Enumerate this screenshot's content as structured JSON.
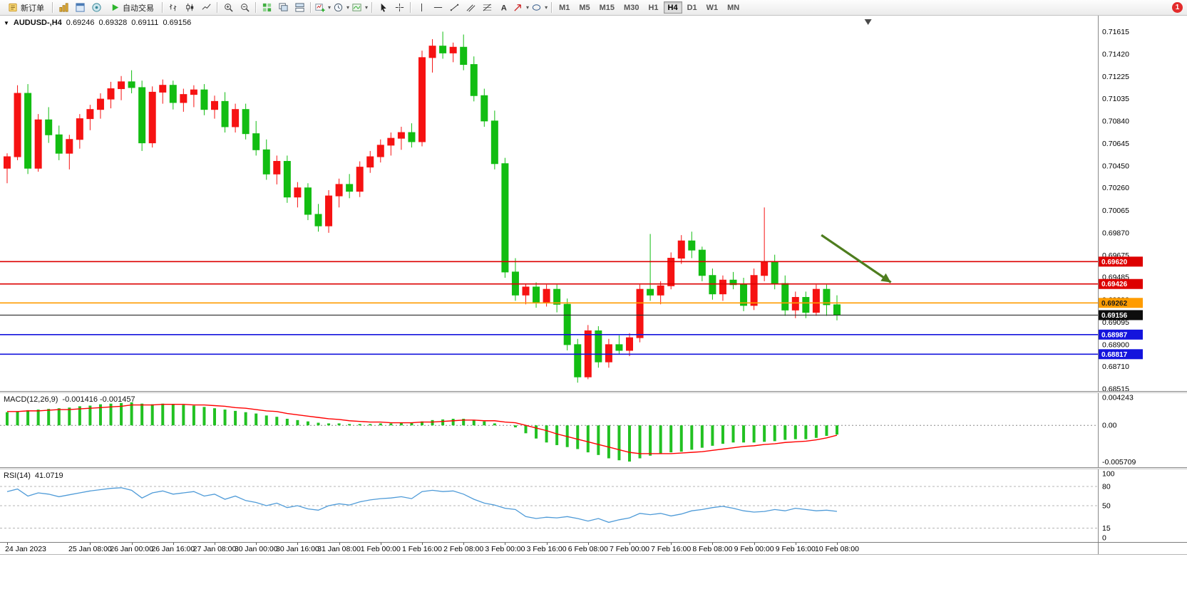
{
  "toolbar": {
    "new_order_label": "新订单",
    "autotrading_label": "自动交易",
    "timeframes": [
      "M1",
      "M5",
      "M15",
      "M30",
      "H1",
      "H4",
      "D1",
      "W1",
      "MN"
    ],
    "active_timeframe": "H4",
    "notification_badge": "1",
    "dropdown_caret": "▾"
  },
  "chart_header": {
    "collapse_icon": "▼",
    "title": "AUDUSD-,H4",
    "open": "0.69246",
    "high": "0.69328",
    "low": "0.69111",
    "close": "0.69156"
  },
  "chart_data": {
    "type": "candlestick",
    "symbol": "AUDUSD-",
    "timeframe": "H4",
    "colors": {
      "up": "#f61212",
      "down": "#12bd12",
      "macd_hist": "#22c122",
      "macd_signal": "#ff0000",
      "rsi_line": "#4f9bd8"
    },
    "ylim": [
      0.6851,
      0.7163
    ],
    "price_axis": [
      "0.71615",
      "0.71420",
      "0.71225",
      "0.71035",
      "0.70840",
      "0.70645",
      "0.70450",
      "0.70260",
      "0.70065",
      "0.69870",
      "0.69675",
      "0.69485",
      "0.69290",
      "0.69095",
      "0.68900",
      "0.68710",
      "0.68515"
    ],
    "candles": [
      [
        0.7043,
        0.7056,
        0.703,
        0.7053
      ],
      [
        0.7053,
        0.7115,
        0.705,
        0.7108
      ],
      [
        0.7108,
        0.7116,
        0.7038,
        0.7043
      ],
      [
        0.7043,
        0.709,
        0.704,
        0.7085
      ],
      [
        0.7085,
        0.7096,
        0.7065,
        0.7072
      ],
      [
        0.7072,
        0.708,
        0.705,
        0.7056
      ],
      [
        0.7056,
        0.7072,
        0.7042,
        0.7068
      ],
      [
        0.7068,
        0.709,
        0.706,
        0.7086
      ],
      [
        0.7086,
        0.7098,
        0.7076,
        0.7094
      ],
      [
        0.7094,
        0.7108,
        0.7086,
        0.7103
      ],
      [
        0.7103,
        0.7118,
        0.7095,
        0.7112
      ],
      [
        0.7112,
        0.7123,
        0.7102,
        0.7118
      ],
      [
        0.7118,
        0.7128,
        0.7108,
        0.7113
      ],
      [
        0.7113,
        0.7119,
        0.7058,
        0.7065
      ],
      [
        0.7065,
        0.7114,
        0.7061,
        0.7109
      ],
      [
        0.7109,
        0.712,
        0.7099,
        0.7115
      ],
      [
        0.7115,
        0.7119,
        0.7094,
        0.71
      ],
      [
        0.71,
        0.7112,
        0.7092,
        0.7107
      ],
      [
        0.7107,
        0.7115,
        0.7096,
        0.7111
      ],
      [
        0.7111,
        0.7116,
        0.7089,
        0.7094
      ],
      [
        0.7094,
        0.7106,
        0.7086,
        0.7101
      ],
      [
        0.7101,
        0.7109,
        0.7074,
        0.7079
      ],
      [
        0.7079,
        0.7099,
        0.7074,
        0.7094
      ],
      [
        0.7094,
        0.7099,
        0.7068,
        0.7073
      ],
      [
        0.7073,
        0.7084,
        0.7054,
        0.7059
      ],
      [
        0.7059,
        0.7068,
        0.7033,
        0.7038
      ],
      [
        0.7038,
        0.7054,
        0.7029,
        0.7049
      ],
      [
        0.7049,
        0.7054,
        0.7013,
        0.7018
      ],
      [
        0.7018,
        0.7031,
        0.7009,
        0.7026
      ],
      [
        0.7026,
        0.703,
        0.6998,
        0.7003
      ],
      [
        0.7003,
        0.7012,
        0.6988,
        0.6993
      ],
      [
        0.6993,
        0.7024,
        0.6987,
        0.7019
      ],
      [
        0.7019,
        0.7034,
        0.7009,
        0.7029
      ],
      [
        0.7029,
        0.7038,
        0.7017,
        0.7023
      ],
      [
        0.7023,
        0.7049,
        0.7018,
        0.7044
      ],
      [
        0.7044,
        0.7058,
        0.7039,
        0.7053
      ],
      [
        0.7053,
        0.7068,
        0.7048,
        0.7063
      ],
      [
        0.7063,
        0.7074,
        0.7054,
        0.7069
      ],
      [
        0.7069,
        0.7079,
        0.7059,
        0.7074
      ],
      [
        0.7074,
        0.7082,
        0.7061,
        0.7066
      ],
      [
        0.7066,
        0.7145,
        0.7062,
        0.7139
      ],
      [
        0.7139,
        0.7155,
        0.7126,
        0.7149
      ],
      [
        0.7149,
        0.71615,
        0.7138,
        0.7143
      ],
      [
        0.7143,
        0.7152,
        0.7135,
        0.7148
      ],
      [
        0.7148,
        0.7159,
        0.7128,
        0.7133
      ],
      [
        0.7133,
        0.714,
        0.7101,
        0.7106
      ],
      [
        0.7106,
        0.7112,
        0.7079,
        0.7084
      ],
      [
        0.7084,
        0.7093,
        0.7042,
        0.7047
      ],
      [
        0.7047,
        0.7052,
        0.6948,
        0.6953
      ],
      [
        0.6953,
        0.6965,
        0.6928,
        0.6933
      ],
      [
        0.6933,
        0.6943,
        0.6925,
        0.694
      ],
      [
        0.694,
        0.6944,
        0.6922,
        0.6927
      ],
      [
        0.6927,
        0.6942,
        0.6923,
        0.6938
      ],
      [
        0.6938,
        0.6942,
        0.6918,
        0.6925
      ],
      [
        0.6925,
        0.693,
        0.6885,
        0.689
      ],
      [
        0.689,
        0.6895,
        0.6857,
        0.6862
      ],
      [
        0.6862,
        0.6907,
        0.686,
        0.6902
      ],
      [
        0.6902,
        0.6906,
        0.687,
        0.6875
      ],
      [
        0.6875,
        0.6895,
        0.687,
        0.689
      ],
      [
        0.689,
        0.6898,
        0.6882,
        0.6885
      ],
      [
        0.6885,
        0.69,
        0.688,
        0.6896
      ],
      [
        0.6896,
        0.6942,
        0.6892,
        0.6938
      ],
      [
        0.6938,
        0.6986,
        0.6928,
        0.6933
      ],
      [
        0.6933,
        0.6945,
        0.6925,
        0.6941
      ],
      [
        0.6941,
        0.697,
        0.6938,
        0.6965
      ],
      [
        0.6965,
        0.6985,
        0.696,
        0.698
      ],
      [
        0.698,
        0.6988,
        0.6965,
        0.6972
      ],
      [
        0.6972,
        0.6975,
        0.6945,
        0.695
      ],
      [
        0.695,
        0.6956,
        0.6929,
        0.6934
      ],
      [
        0.6934,
        0.695,
        0.6928,
        0.6946
      ],
      [
        0.6946,
        0.6953,
        0.6938,
        0.6942
      ],
      [
        0.6942,
        0.6948,
        0.6919,
        0.6924
      ],
      [
        0.6924,
        0.6956,
        0.692,
        0.695
      ],
      [
        0.695,
        0.7009,
        0.6945,
        0.6962
      ],
      [
        0.6962,
        0.6968,
        0.6938,
        0.6943
      ],
      [
        0.6943,
        0.695,
        0.6915,
        0.692
      ],
      [
        0.692,
        0.6936,
        0.6913,
        0.6931
      ],
      [
        0.6931,
        0.6936,
        0.6913,
        0.6918
      ],
      [
        0.6918,
        0.6942,
        0.6915,
        0.6938
      ],
      [
        0.6938,
        0.6942,
        0.6915,
        0.69246
      ],
      [
        0.69246,
        0.69328,
        0.69111,
        0.69156
      ]
    ],
    "hlines": [
      {
        "price": 0.6962,
        "label": "0.69620",
        "color": "#dd0000",
        "tag_bg": "#dd0000",
        "tag_fg": "#ffffff",
        "width": 1.6
      },
      {
        "price": 0.69426,
        "label": "0.69426",
        "color": "#dd0000",
        "tag_bg": "#dd0000",
        "tag_fg": "#ffffff",
        "width": 1.6
      },
      {
        "price": 0.69262,
        "label": "0.69262",
        "color": "#ff9c00",
        "tag_bg": "#ff9c00",
        "tag_fg": "#1a1a1a",
        "width": 1.6
      },
      {
        "price": 0.69156,
        "label": "0.69156",
        "color": "#2b2b2b",
        "tag_bg": "#0d0d0d",
        "tag_fg": "#ffffff",
        "width": 1.2
      },
      {
        "price": 0.68987,
        "label": "0.68987",
        "color": "#1414dd",
        "tag_bg": "#1414dd",
        "tag_fg": "#ffffff",
        "width": 1.6
      },
      {
        "price": 0.68817,
        "label": "0.68817",
        "color": "#1414dd",
        "tag_bg": "#1414dd",
        "tag_fg": "#ffffff",
        "width": 1.6
      }
    ],
    "arrow": {
      "from_bar": 78.5,
      "from_price": 0.6985,
      "to_bar": 85.2,
      "to_price": 0.6944,
      "color": "#4e7d1e"
    },
    "shift_marker_bar": 83,
    "time_labels": [
      {
        "index": 0,
        "text": "24 Jan 2023"
      },
      {
        "index": 8,
        "text": "25 Jan 08:00"
      },
      {
        "index": 12,
        "text": "26 Jan 00:00"
      },
      {
        "index": 16,
        "text": "26 Jan 16:00"
      },
      {
        "index": 20,
        "text": "27 Jan 08:00"
      },
      {
        "index": 24,
        "text": "30 Jan 00:00"
      },
      {
        "index": 28,
        "text": "30 Jan 16:00"
      },
      {
        "index": 32,
        "text": "31 Jan 08:00"
      },
      {
        "index": 36,
        "text": "1 Feb 00:00"
      },
      {
        "index": 40,
        "text": "1 Feb 16:00"
      },
      {
        "index": 44,
        "text": "2 Feb 08:00"
      },
      {
        "index": 48,
        "text": "3 Feb 00:00"
      },
      {
        "index": 52,
        "text": "3 Feb 16:00"
      },
      {
        "index": 56,
        "text": "6 Feb 08:00"
      },
      {
        "index": 60,
        "text": "7 Feb 00:00"
      },
      {
        "index": 64,
        "text": "7 Feb 16:00"
      },
      {
        "index": 68,
        "text": "8 Feb 08:00"
      },
      {
        "index": 72,
        "text": "9 Feb 00:00"
      },
      {
        "index": 76,
        "text": "9 Feb 16:00"
      },
      {
        "index": 80,
        "text": "10 Feb 08:00"
      }
    ],
    "macd": {
      "label": "MACD(12,26,9)",
      "values_text": "-0.001416 -0.001457",
      "axis": [
        "0.004243",
        "0.00",
        "-0.005709"
      ],
      "ylim": [
        -0.005709,
        0.004243
      ],
      "hist": [
        0.002,
        0.0021,
        0.0023,
        0.0024,
        0.0025,
        0.0026,
        0.0027,
        0.0029,
        0.003,
        0.0032,
        0.0033,
        0.0034,
        0.0035,
        0.0033,
        0.0032,
        0.0033,
        0.0032,
        0.0031,
        0.003,
        0.0028,
        0.0026,
        0.0024,
        0.0022,
        0.002,
        0.0018,
        0.0015,
        0.0013,
        0.001,
        0.0008,
        0.0006,
        0.0004,
        0.0003,
        0.0003,
        0.0002,
        0.0002,
        0.0002,
        0.0003,
        0.0003,
        0.0004,
        0.0004,
        0.0006,
        0.0008,
        0.0009,
        0.001,
        0.001,
        0.0008,
        0.0006,
        0.0003,
        0.0,
        -0.0003,
        -0.0012,
        -0.002,
        -0.0026,
        -0.003,
        -0.0033,
        -0.0036,
        -0.0041,
        -0.0045,
        -0.005,
        -0.0053,
        -0.0055,
        -0.005,
        -0.0046,
        -0.0043,
        -0.0041,
        -0.004,
        -0.0037,
        -0.0034,
        -0.0031,
        -0.0028,
        -0.0026,
        -0.0026,
        -0.0026,
        -0.0025,
        -0.0024,
        -0.0022,
        -0.0021,
        -0.0021,
        -0.0019,
        -0.0016,
        -0.0014
      ],
      "signal": [
        0.0021,
        0.0021,
        0.0022,
        0.0022,
        0.0023,
        0.0024,
        0.0024,
        0.0025,
        0.0026,
        0.0027,
        0.0028,
        0.0029,
        0.0031,
        0.0031,
        0.0031,
        0.0032,
        0.0032,
        0.0032,
        0.0031,
        0.0031,
        0.003,
        0.0029,
        0.0027,
        0.0026,
        0.0024,
        0.0022,
        0.0021,
        0.0018,
        0.0016,
        0.0014,
        0.0012,
        0.001,
        0.0009,
        0.0007,
        0.0006,
        0.0005,
        0.0005,
        0.0004,
        0.0004,
        0.0004,
        0.0005,
        0.0005,
        0.0006,
        0.0007,
        0.0008,
        0.0008,
        0.0007,
        0.0007,
        0.0005,
        0.0004,
        0.0,
        -0.0004,
        -0.0008,
        -0.0013,
        -0.0017,
        -0.0021,
        -0.0025,
        -0.0029,
        -0.0033,
        -0.0037,
        -0.0041,
        -0.0043,
        -0.0043,
        -0.0043,
        -0.0043,
        -0.0042,
        -0.0041,
        -0.004,
        -0.0038,
        -0.0036,
        -0.0034,
        -0.0032,
        -0.0031,
        -0.0029,
        -0.0028,
        -0.0026,
        -0.0025,
        -0.0024,
        -0.0022,
        -0.0019,
        -0.0015
      ]
    },
    "rsi": {
      "label": "RSI(14)",
      "value_text": "41.0719",
      "axis": [
        "100",
        "80",
        "50",
        "15",
        "0"
      ],
      "levels": [
        80,
        50,
        15
      ],
      "ylim": [
        0,
        100
      ],
      "values": [
        72,
        76,
        65,
        70,
        68,
        64,
        67,
        70,
        73,
        75,
        77,
        78,
        74,
        62,
        70,
        73,
        68,
        70,
        72,
        65,
        68,
        60,
        65,
        58,
        55,
        50,
        54,
        47,
        50,
        45,
        43,
        50,
        53,
        51,
        56,
        59,
        61,
        62,
        64,
        61,
        72,
        74,
        72,
        73,
        68,
        60,
        54,
        51,
        46,
        44,
        33,
        30,
        32,
        31,
        33,
        30,
        26,
        30,
        24,
        28,
        31,
        38,
        36,
        38,
        34,
        37,
        42,
        44,
        47,
        49,
        46,
        42,
        40,
        41,
        44,
        42,
        46,
        44,
        42,
        43,
        41.07
      ]
    }
  }
}
